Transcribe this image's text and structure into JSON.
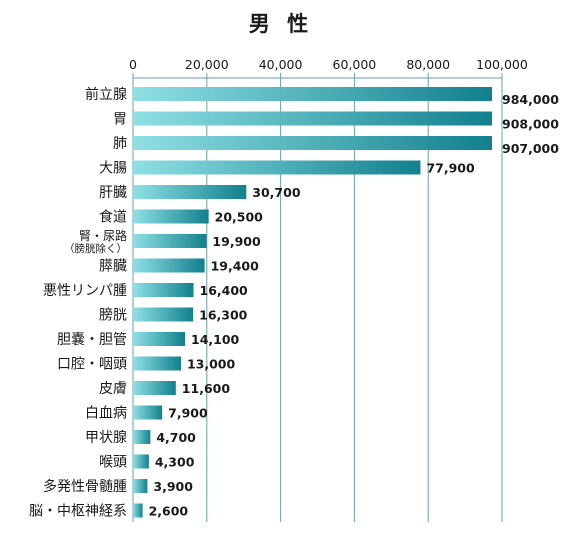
{
  "chart_data": {
    "type": "bar",
    "orientation": "horizontal",
    "title": "男 性",
    "xlim": [
      0,
      100000
    ],
    "xticks": [
      0,
      20000,
      40000,
      60000,
      80000,
      100000
    ],
    "xtick_labels": [
      "0",
      "20,000",
      "40,000",
      "60,000",
      "80,000",
      "100,000"
    ],
    "axis_position": "top",
    "grid": true,
    "axis_break": "bars for 前立腺, 胃, 肺 and 大腸 exceed the axis and are drawn truncated",
    "categories": [
      [
        "前立腺"
      ],
      [
        "胃"
      ],
      [
        "肺"
      ],
      [
        "大腸"
      ],
      [
        "肝臓"
      ],
      [
        "食道"
      ],
      [
        "腎・尿路",
        "（膀胱除く）"
      ],
      [
        "膵臓"
      ],
      [
        "悪性リンパ腫"
      ],
      [
        "膀胱"
      ],
      [
        "胆嚢・胆管"
      ],
      [
        "口腔・咽頭"
      ],
      [
        "皮膚"
      ],
      [
        "白血病"
      ],
      [
        "甲状腺"
      ],
      [
        "喉頭"
      ],
      [
        "多発性骨髄腫"
      ],
      [
        "脳・中枢神経系"
      ]
    ],
    "values": [
      984000,
      908000,
      907000,
      77900,
      30700,
      20500,
      19900,
      19400,
      16400,
      16300,
      14100,
      13000,
      11600,
      7900,
      4700,
      4300,
      3900,
      2600
    ],
    "value_labels": [
      "984,000",
      "908,000",
      "907,000",
      "77,900",
      "30,700",
      "20,500",
      "19,900",
      "19,400",
      "16,400",
      "16,300",
      "14,100",
      "13,000",
      "11,600",
      "7,900",
      "4,700",
      "4,300",
      "3,900",
      "2,600"
    ],
    "colors": {
      "bar_light": "#8fe0e4",
      "bar_dark": "#12808e",
      "grid": "#6aa0a8"
    }
  }
}
